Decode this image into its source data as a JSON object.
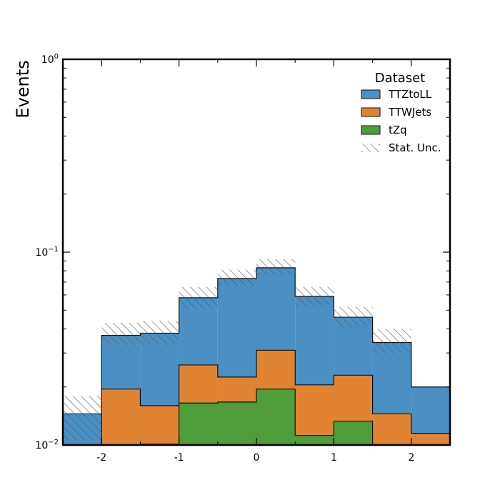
{
  "chart_data": {
    "type": "bar",
    "stacking": "overlay",
    "xlabel": "",
    "ylabel": "Events",
    "ylim": [
      0.01,
      1
    ],
    "yscale": "log",
    "xlim": [
      -2.5,
      2.5
    ],
    "grid": false,
    "bin_edges": [
      -2.5,
      -2.0,
      -1.5,
      -1.0,
      -0.5,
      0.0,
      0.5,
      1.0,
      1.5,
      2.0,
      2.5
    ],
    "x_ticks": [
      {
        "value": -2,
        "label": "-2"
      },
      {
        "value": -1,
        "label": "-1"
      },
      {
        "value": 0,
        "label": "0"
      },
      {
        "value": 1,
        "label": "1"
      },
      {
        "value": 2,
        "label": "2"
      }
    ],
    "y_ticks": [
      {
        "value": 0.01,
        "base": "10",
        "exp": "−2"
      },
      {
        "value": 0.1,
        "base": "10",
        "exp": "−1"
      },
      {
        "value": 1,
        "base": "10",
        "exp": "0"
      }
    ],
    "legend": {
      "title": "Dataset",
      "position": "top-right"
    },
    "series": [
      {
        "name": "TTZtoLL",
        "color": "#4a90c4",
        "values": [
          0.0145,
          0.037,
          0.038,
          0.058,
          0.073,
          0.083,
          0.059,
          0.046,
          0.034,
          0.02
        ]
      },
      {
        "name": "TTWJets",
        "color": "#e08434",
        "values": [
          0.0,
          0.0195,
          0.016,
          0.026,
          0.0225,
          0.031,
          0.0205,
          0.023,
          0.0145,
          0.0115
        ]
      },
      {
        "name": "tZq",
        "color": "#4f9e3a",
        "values": [
          0.0,
          0.0,
          0.0101,
          0.0165,
          0.0167,
          0.0195,
          0.0112,
          0.0133,
          0.0,
          0.0
        ]
      }
    ],
    "uncertainty": {
      "name": "Stat. Unc.",
      "lower": [
        0.0105,
        0.033,
        0.033,
        0.051,
        0.067,
        0.076,
        0.053,
        0.041,
        0.03,
        0.02
      ],
      "upper": [
        0.018,
        0.043,
        0.044,
        0.066,
        0.081,
        0.092,
        0.066,
        0.052,
        0.04,
        0.02
      ]
    }
  }
}
